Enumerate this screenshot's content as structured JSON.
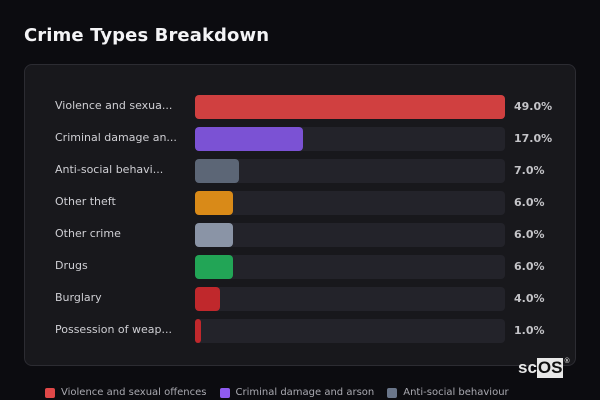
{
  "title": "Crime Types Breakdown",
  "rows": [
    {
      "label": "Violence and sexua...",
      "pct_label": "49.0%",
      "value": 49.0,
      "color": "#d04040"
    },
    {
      "label": "Criminal damage an...",
      "pct_label": "17.0%",
      "value": 17.0,
      "color": "#7b52d4"
    },
    {
      "label": "Anti-social behavi...",
      "pct_label": "7.0%",
      "value": 7.0,
      "color": "#5c6676"
    },
    {
      "label": "Other theft",
      "pct_label": "6.0%",
      "value": 6.0,
      "color": "#d98a18"
    },
    {
      "label": "Other crime",
      "pct_label": "6.0%",
      "value": 6.0,
      "color": "#8a94a6"
    },
    {
      "label": "Drugs",
      "pct_label": "6.0%",
      "value": 6.0,
      "color": "#22a556"
    },
    {
      "label": "Burglary",
      "pct_label": "4.0%",
      "value": 4.0,
      "color": "#c0282c"
    },
    {
      "label": "Possession of weap...",
      "pct_label": "1.0%",
      "value": 1.0,
      "color": "#c0282c"
    }
  ],
  "legend": [
    {
      "label": "Violence and sexual offences",
      "color": "#e04848"
    },
    {
      "label": "Criminal damage and arson",
      "color": "#8f5bf0"
    },
    {
      "label": "Anti-social behaviour",
      "color": "#6a768a"
    }
  ],
  "logo": {
    "prefix": "sc",
    "highlight": "OS",
    "mark": "®"
  },
  "chart_data": {
    "type": "bar",
    "orientation": "horizontal",
    "title": "Crime Types Breakdown",
    "categories": [
      "Violence and sexual offences",
      "Criminal damage and arson",
      "Anti-social behaviour",
      "Other theft",
      "Other crime",
      "Drugs",
      "Burglary",
      "Possession of weapons"
    ],
    "display_labels": [
      "Violence and sexua...",
      "Criminal damage an...",
      "Anti-social behavi...",
      "Other theft",
      "Other crime",
      "Drugs",
      "Burglary",
      "Possession of weap..."
    ],
    "values": [
      49.0,
      17.0,
      7.0,
      6.0,
      6.0,
      6.0,
      4.0,
      1.0
    ],
    "value_unit": "%",
    "xlabel": "",
    "ylabel": "",
    "xlim": [
      0,
      49
    ],
    "grid": false,
    "legend_position": "bottom",
    "legend_entries": [
      "Violence and sexual offences",
      "Criminal damage and arson",
      "Anti-social behaviour"
    ]
  }
}
